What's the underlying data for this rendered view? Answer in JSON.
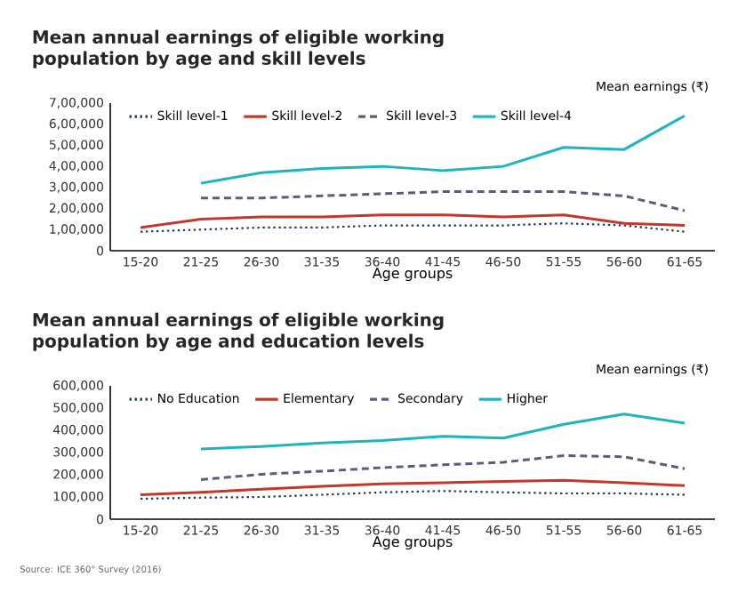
{
  "chart_data": [
    {
      "type": "line",
      "title": "Mean annual earnings of eligible working population by age and skill levels",
      "ylabel": "Mean earnings (₹)",
      "xlabel": "Age groups",
      "categories": [
        "15-20",
        "21-25",
        "26-30",
        "31-35",
        "36-40",
        "41-45",
        "46-50",
        "51-55",
        "56-60",
        "61-65"
      ],
      "ylim": [
        0,
        700000
      ],
      "yticks": [
        0,
        {
          "value": 100000,
          "label": "1,00,000"
        },
        {
          "value": 200000,
          "label": "2,00,000"
        },
        {
          "value": 300000,
          "label": "3,00,000"
        },
        {
          "value": 400000,
          "label": "4,00,000"
        },
        {
          "value": 500000,
          "label": "5,00,000"
        },
        {
          "value": 600000,
          "label": "6,00,000"
        },
        {
          "value": 700000,
          "label": "7,00,000"
        }
      ],
      "legend": "top",
      "marker": "none",
      "series": [
        {
          "name": "Skill level-1",
          "color": "#1f3a5f",
          "line_style": "dotted",
          "values": [
            90000,
            100000,
            110000,
            110000,
            120000,
            120000,
            120000,
            130000,
            120000,
            90000
          ]
        },
        {
          "name": "Skill level-2",
          "color": "#c0392b",
          "line_style": "solid",
          "values": [
            110000,
            150000,
            160000,
            160000,
            170000,
            170000,
            160000,
            170000,
            130000,
            120000
          ]
        },
        {
          "name": "Skill level-3",
          "color": "#5b5b7d",
          "line_style": "dashed",
          "values": [
            null,
            250000,
            250000,
            260000,
            270000,
            280000,
            280000,
            280000,
            260000,
            190000
          ]
        },
        {
          "name": "Skill level-4",
          "color": "#1fb3c2",
          "line_style": "solid",
          "values": [
            null,
            320000,
            370000,
            390000,
            400000,
            380000,
            400000,
            490000,
            480000,
            640000
          ]
        }
      ]
    },
    {
      "type": "line",
      "title": "Mean annual earnings of eligible working population by age and education levels",
      "ylabel": "Mean earnings (₹)",
      "xlabel": "Age groups",
      "categories": [
        "15-20",
        "21-25",
        "26-30",
        "31-35",
        "36-40",
        "41-45",
        "46-50",
        "51-55",
        "56-60",
        "61-65"
      ],
      "ylim": [
        0,
        600000
      ],
      "yticks": [
        0,
        {
          "value": 100000,
          "label": "100,000"
        },
        {
          "value": 200000,
          "label": "200,000"
        },
        {
          "value": 300000,
          "label": "300,000"
        },
        {
          "value": 400000,
          "label": "400,000"
        },
        {
          "value": 500000,
          "label": "500,000"
        },
        {
          "value": 600000,
          "label": "600,000"
        }
      ],
      "legend": "top",
      "marker": "none",
      "annotations": [
        "Source: ICE 360° Survey (2016)"
      ],
      "series": [
        {
          "name": "No Education",
          "color": "#1f3a5f",
          "line_style": "dotted",
          "values": [
            92000,
            97000,
            100000,
            110000,
            121000,
            127000,
            121000,
            116000,
            116000,
            110000
          ]
        },
        {
          "name": "Elementary",
          "color": "#c0392b",
          "line_style": "solid",
          "values": [
            110000,
            121000,
            135000,
            148000,
            159000,
            164000,
            170000,
            175000,
            164000,
            151000
          ]
        },
        {
          "name": "Secondary",
          "color": "#5b5b7d",
          "line_style": "dashed",
          "values": [
            null,
            178000,
            202000,
            216000,
            232000,
            245000,
            256000,
            286000,
            281000,
            227000
          ]
        },
        {
          "name": "Higher",
          "color": "#1fb3c2",
          "line_style": "solid",
          "values": [
            null,
            316000,
            327000,
            343000,
            354000,
            373000,
            365000,
            427000,
            473000,
            432000
          ]
        }
      ]
    }
  ]
}
